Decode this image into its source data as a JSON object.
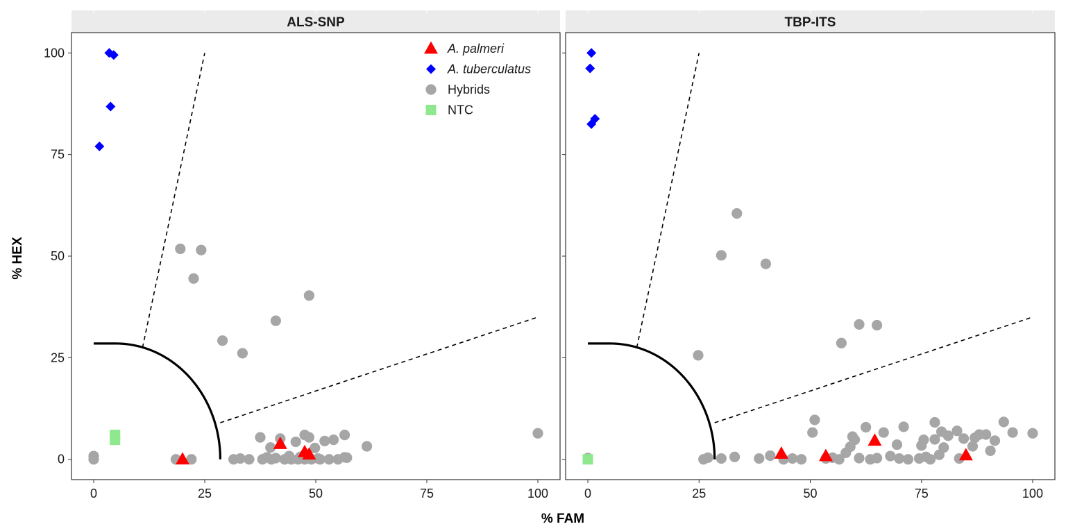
{
  "chart_data": {
    "type": "scatter",
    "xlabel": "% FAM",
    "ylabel": "% HEX",
    "xlim": [
      -5,
      105
    ],
    "ylim": [
      -5,
      105
    ],
    "xticks": [
      0,
      25,
      50,
      75,
      100
    ],
    "yticks": [
      0,
      25,
      50,
      75,
      100
    ],
    "grid": false,
    "legend_position": "top-right of first panel",
    "legend": [
      {
        "name": "A. palmeri",
        "italic": true,
        "shape": "triangle",
        "color": "#ff0000"
      },
      {
        "name": "A. tuberculatus",
        "italic": true,
        "shape": "diamond",
        "color": "#0000ff"
      },
      {
        "name": "Hybrids",
        "italic": false,
        "shape": "circle",
        "color": "#a6a6a6"
      },
      {
        "name": "NTC",
        "italic": false,
        "shape": "square",
        "color": "#8ee88e"
      }
    ],
    "threshold": {
      "arc_start": [
        0,
        28.5
      ],
      "arc_end": [
        28.5,
        0
      ],
      "upper_dashed": [
        [
          11,
          27.5
        ],
        [
          25,
          100
        ]
      ],
      "lower_dashed": [
        [
          28.5,
          9
        ],
        [
          100,
          35
        ]
      ]
    },
    "panels": [
      {
        "title": "ALS-SNP",
        "series": [
          {
            "name": "A. palmeri",
            "points": [
              [
                20,
                0
              ],
              [
                42,
                3.8
              ],
              [
                47.5,
                1.8
              ],
              [
                48.5,
                1.2
              ]
            ]
          },
          {
            "name": "A. tuberculatus",
            "points": [
              [
                3.5,
                100
              ],
              [
                4.5,
                99.5
              ],
              [
                3.8,
                86.8
              ],
              [
                1.3,
                77
              ]
            ]
          },
          {
            "name": "Hybrids",
            "points": [
              [
                0,
                0.8
              ],
              [
                0,
                0
              ],
              [
                18.5,
                0
              ],
              [
                22,
                0
              ],
              [
                19.5,
                51.8
              ],
              [
                24.2,
                51.5
              ],
              [
                22.5,
                44.5
              ],
              [
                29,
                29.2
              ],
              [
                33.5,
                26.1
              ],
              [
                41,
                34.1
              ],
              [
                48.5,
                40.3
              ],
              [
                31.5,
                0
              ],
              [
                33,
                0.2
              ],
              [
                35,
                0
              ],
              [
                37.5,
                5.4
              ],
              [
                38,
                0
              ],
              [
                39,
                0.5
              ],
              [
                39.8,
                2.9
              ],
              [
                40,
                0
              ],
              [
                41,
                0.3
              ],
              [
                42,
                5.1
              ],
              [
                43,
                0
              ],
              [
                44,
                0.8
              ],
              [
                44.5,
                0
              ],
              [
                45.5,
                4.3
              ],
              [
                46,
                0
              ],
              [
                46.5,
                0.6
              ],
              [
                47.5,
                6
              ],
              [
                47.5,
                0
              ],
              [
                48.5,
                5.4
              ],
              [
                49,
                0
              ],
              [
                49.8,
                2.8
              ],
              [
                50.5,
                0.2
              ],
              [
                51,
                0
              ],
              [
                52,
                4.5
              ],
              [
                53,
                0
              ],
              [
                54,
                4.8
              ],
              [
                55,
                0
              ],
              [
                56.5,
                0.5
              ],
              [
                56.5,
                6
              ],
              [
                57,
                0.4
              ],
              [
                61.5,
                3.2
              ],
              [
                100,
                6.4
              ]
            ]
          },
          {
            "name": "NTC",
            "points": [
              [
                4.8,
                4.8
              ],
              [
                4.8,
                6
              ]
            ]
          }
        ]
      },
      {
        "title": "TBP-ITS",
        "series": [
          {
            "name": "A. palmeri",
            "points": [
              [
                43.5,
                1.4
              ],
              [
                53.5,
                0.8
              ],
              [
                64.5,
                4.6
              ],
              [
                85,
                1
              ]
            ]
          },
          {
            "name": "A. tuberculatus",
            "points": [
              [
                0.8,
                100
              ],
              [
                0.5,
                96.2
              ],
              [
                0.8,
                82.5
              ],
              [
                1.6,
                83.8
              ]
            ]
          },
          {
            "name": "Hybrids",
            "points": [
              [
                24.8,
                25.6
              ],
              [
                30,
                50.2
              ],
              [
                33.5,
                60.5
              ],
              [
                40,
                48.1
              ],
              [
                57,
                28.6
              ],
              [
                61,
                33.2
              ],
              [
                65,
                33
              ],
              [
                0,
                0.3
              ],
              [
                26,
                0
              ],
              [
                27,
                0.4
              ],
              [
                30,
                0.2
              ],
              [
                33,
                0.6
              ],
              [
                38.5,
                0.2
              ],
              [
                41,
                0.9
              ],
              [
                44,
                0
              ],
              [
                46,
                0.2
              ],
              [
                48,
                0
              ],
              [
                50.5,
                6.6
              ],
              [
                51,
                9.7
              ],
              [
                53.5,
                0.2
              ],
              [
                55,
                0.4
              ],
              [
                56.5,
                0
              ],
              [
                58,
                1.6
              ],
              [
                59,
                3.1
              ],
              [
                59.5,
                5.6
              ],
              [
                60,
                4.8
              ],
              [
                61,
                0.3
              ],
              [
                62.5,
                7.9
              ],
              [
                63.5,
                0
              ],
              [
                65,
                0.3
              ],
              [
                66.5,
                6.6
              ],
              [
                68,
                0.8
              ],
              [
                69.5,
                3.6
              ],
              [
                70,
                0.2
              ],
              [
                71,
                8
              ],
              [
                72,
                0
              ],
              [
                74.5,
                0.2
              ],
              [
                75,
                3.4
              ],
              [
                75.5,
                4.8
              ],
              [
                76,
                0.6
              ],
              [
                77,
                0
              ],
              [
                78,
                9.1
              ],
              [
                78,
                4.9
              ],
              [
                79,
                1.1
              ],
              [
                79.5,
                6.8
              ],
              [
                80,
                2.9
              ],
              [
                81,
                5.8
              ],
              [
                83,
                7
              ],
              [
                83.5,
                0.2
              ],
              [
                84.5,
                5.1
              ],
              [
                86.5,
                3.2
              ],
              [
                87,
                5.3
              ],
              [
                88,
                6.1
              ],
              [
                89.5,
                6.1
              ],
              [
                90.5,
                2.1
              ],
              [
                91.5,
                4.6
              ],
              [
                93.5,
                9.2
              ],
              [
                95.5,
                6.6
              ],
              [
                100,
                6.4
              ]
            ]
          },
          {
            "name": "NTC",
            "points": [
              [
                0,
                0
              ]
            ]
          }
        ]
      }
    ]
  }
}
